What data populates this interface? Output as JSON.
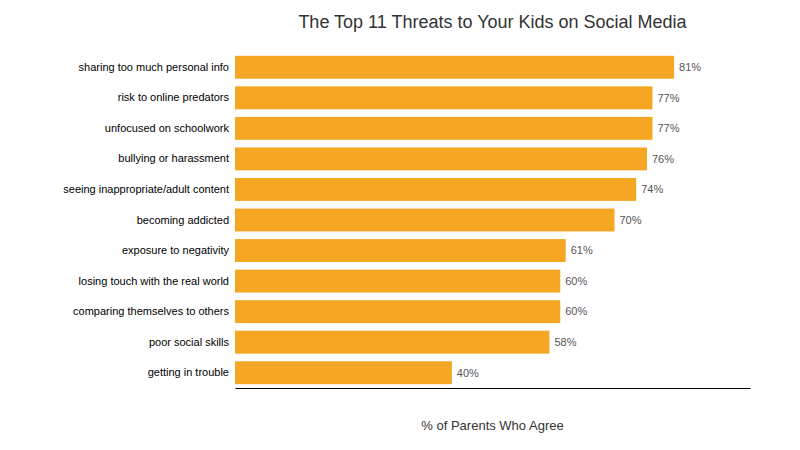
{
  "chart_data": {
    "type": "bar",
    "orientation": "horizontal",
    "title": "The Top 11 Threats to Your Kids on Social Media",
    "xlabel": "% of Parents Who Agree",
    "categories": [
      "getting in trouble",
      "poor social skills",
      "comparing themselves to others",
      "losing touch with the real world",
      "exposure to negativity",
      "becoming addicted",
      "seeing inappropriate/adult content",
      "bullying or harassment",
      "unfocused on schoolwork",
      "risk to online predators",
      "sharing too much personal info"
    ],
    "values": [
      40,
      58,
      60,
      60,
      61,
      70,
      74,
      76,
      77,
      77,
      81
    ],
    "value_labels": [
      "40%",
      "58%",
      "60%",
      "60%",
      "61%",
      "70%",
      "74%",
      "76%",
      "77%",
      "77%",
      "81%"
    ],
    "color": "#F5A623",
    "xlim": [
      0,
      95
    ],
    "data_labels": true,
    "tick_labels": "y"
  }
}
